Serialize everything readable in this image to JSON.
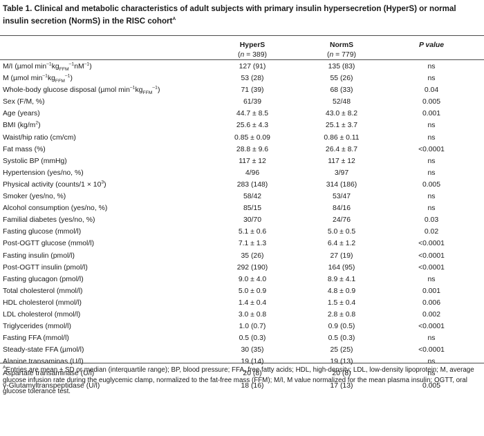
{
  "title": "Table 1. Clinical and metabolic characteristics of adult subjects with primary insulin hypersecretion (HyperS) or normal insulin secretion (NormS) in the RISC cohort",
  "title_sup": "A",
  "headers": {
    "hypers": "HyperS",
    "hypers_n": "(n = 389)",
    "norms": "NormS",
    "norms_n": "(n = 779)",
    "p": "P value"
  },
  "rows": [
    {
      "html": "M/I (µmol min<sup>–1</sup>kg<sub>FFM</sub><sup>–1</sup>nM<sup>–1</sup>)",
      "hypers": "127 (91)",
      "norms": "135 (83)",
      "p": "ns"
    },
    {
      "html": "M (µmol min<sup>–1</sup>kg<sub>FFM</sub><sup>–1</sup>)",
      "hypers": "53 (28)",
      "norms": "55 (26)",
      "p": "ns"
    },
    {
      "html": "Whole-body glucose disposal (µmol min<sup>–1</sup>kg<sub>FFM</sub><sup>–1</sup>)",
      "hypers": "71 (39)",
      "norms": "68 (33)",
      "p": "0.04"
    },
    {
      "html": "Sex (F/M, %)",
      "hypers": "61/39",
      "norms": "52/48",
      "p": "0.005"
    },
    {
      "html": "Age (years)",
      "hypers": "44.7 ± 8.5",
      "norms": "43.0 ± 8.2",
      "p": "0.001"
    },
    {
      "html": "BMI (kg/m<sup>2</sup>)",
      "hypers": "25.6 ± 4.3",
      "norms": "25.1 ± 3.7",
      "p": "ns"
    },
    {
      "html": "Waist/hip ratio (cm/cm)",
      "hypers": "0.85 ± 0.09",
      "norms": "0.86 ± 0.11",
      "p": "ns"
    },
    {
      "html": "Fat mass (%)",
      "hypers": "28.8 ± 9.6",
      "norms": "26.4 ± 8.7",
      "p": "<0.0001"
    },
    {
      "html": "Systolic BP (mmHg)",
      "hypers": "117 ± 12",
      "norms": "117 ± 12",
      "p": "ns"
    },
    {
      "html": "Hypertension (yes/no, %)",
      "hypers": "4/96",
      "norms": "3/97",
      "p": "ns"
    },
    {
      "html": "Physical activity (counts/1 × 10<sup>3</sup>)",
      "hypers": "283 (148)",
      "norms": "314 (186)",
      "p": "0.005"
    },
    {
      "html": "Smoker (yes/no, %)",
      "hypers": "58/42",
      "norms": "53/47",
      "p": "ns"
    },
    {
      "html": "Alcohol consumption (yes/no, %)",
      "hypers": "85/15",
      "norms": "84/16",
      "p": "ns"
    },
    {
      "html": "Familial diabetes (yes/no, %)",
      "hypers": "30/70",
      "norms": "24/76",
      "p": "0.03"
    },
    {
      "html": "Fasting glucose (mmol/l)",
      "hypers": "5.1 ± 0.6",
      "norms": "5.0 ± 0.5",
      "p": "0.02"
    },
    {
      "html": "Post-OGTT glucose (mmol/l)",
      "hypers": "7.1 ± 1.3",
      "norms": "6.4 ± 1.2",
      "p": "<0.0001"
    },
    {
      "html": "Fasting insulin (pmol/l)",
      "hypers": "35 (26)",
      "norms": "27 (19)",
      "p": "<0.0001"
    },
    {
      "html": "Post-OGTT insulin (pmol/l)",
      "hypers": "292 (190)",
      "norms": "164 (95)",
      "p": "<0.0001"
    },
    {
      "html": "Fasting glucagon (pmol/l)",
      "hypers": "9.0 ± 4.0",
      "norms": "8.9 ± 4.1",
      "p": "ns"
    },
    {
      "html": "Total cholesterol (mmol/l)",
      "hypers": "5.0 ± 0.9",
      "norms": "4.8 ± 0.9",
      "p": "0.001"
    },
    {
      "html": "HDL cholesterol (mmol/l)",
      "hypers": "1.4 ± 0.4",
      "norms": "1.5 ± 0.4",
      "p": "0.006"
    },
    {
      "html": "LDL cholesterol (mmol/l)",
      "hypers": "3.0 ± 0.8",
      "norms": "2.8 ± 0.8",
      "p": "0.002"
    },
    {
      "html": "Triglycerides (mmol/l)",
      "hypers": "1.0 (0.7)",
      "norms": "0.9 (0.5)",
      "p": "<0.0001"
    },
    {
      "html": "Fasting FFA (mmol/l)",
      "hypers": "0.5 (0.3)",
      "norms": "0.5 (0.3)",
      "p": "ns"
    },
    {
      "html": "Steady-state FFA (µmol/l)",
      "hypers": "30 (35)",
      "norms": "25 (25)",
      "p": "<0.0001"
    },
    {
      "html": "Alanine transaminas (U/l)",
      "hypers": "19 (14)",
      "norms": "19 (13)",
      "p": "ns"
    },
    {
      "html": "Aspartate transaminase (U/l)",
      "hypers": "20 (8)",
      "norms": "20 (8)",
      "p": "ns"
    },
    {
      "html": "γ-Glutamyltranspeptidase (U/l)",
      "hypers": "18 (16)",
      "norms": "17 (13)",
      "p": "0.005"
    }
  ],
  "footnote_sup": "A",
  "footnote": "Entries are mean ± SD or median (interquartile range); BP, blood pressure; FFA, free fatty acids; HDL, high-density; LDL, low-density lipoprotein; M, average glucose infusion rate during the euglycemic clamp, normalized to the fat-free mass (FFM); M/I, M value normalized for the mean plasma insulin; OGTT, oral glucose tolerance test."
}
